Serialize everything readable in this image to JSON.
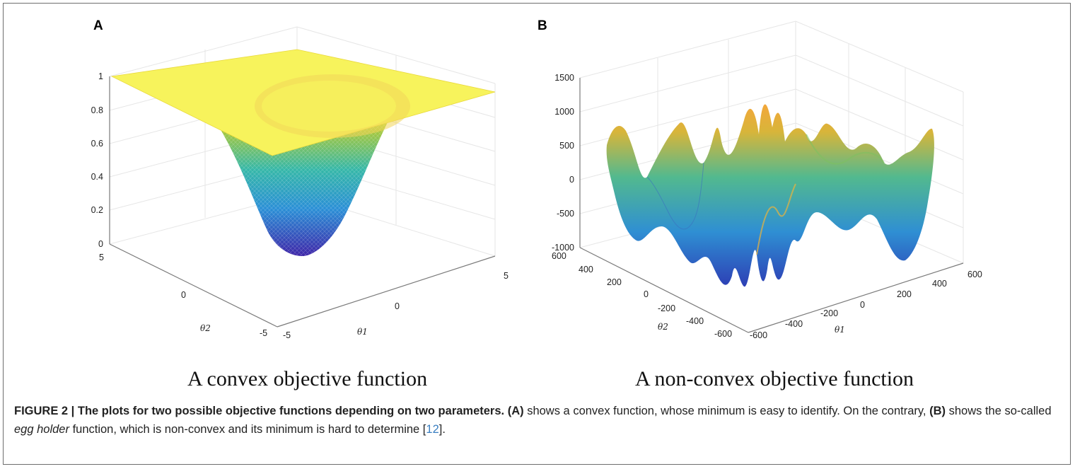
{
  "figure": {
    "panel_a": {
      "label": "A",
      "subtitle": "A convex objective function",
      "z_ticks": [
        "0",
        "0.2",
        "0.4",
        "0.6",
        "0.8",
        "1"
      ],
      "theta2_ticks": [
        "5",
        "0",
        "-5"
      ],
      "theta1_ticks": [
        "-5",
        "0",
        "5"
      ],
      "x_axis_label": "θ1",
      "y_axis_label": "θ2"
    },
    "panel_b": {
      "label": "B",
      "subtitle": "A non-convex objective function",
      "z_ticks": [
        "-1000",
        "-500",
        "0",
        "500",
        "1000",
        "1500"
      ],
      "theta2_ticks": [
        "600",
        "400",
        "200",
        "0",
        "-200",
        "-400",
        "-600"
      ],
      "theta1_ticks": [
        "-600",
        "-400",
        "-200",
        "0",
        "200",
        "400",
        "600"
      ],
      "x_axis_label": "θ1",
      "y_axis_label": "θ2"
    },
    "caption": {
      "figure_number": "FIGURE 2 | ",
      "title": "The plots for two possible objective functions depending on two parameters.",
      "ref_a": "(A)",
      "text_a": " shows a convex function, whose minimum is easy to identify. On the contrary, ",
      "ref_b": "(B)",
      "text_b_1": " shows the so-called ",
      "italic_term": "egg holder",
      "text_b_2": " function, which is non-convex and its minimum is hard to determine [",
      "citation": "12",
      "text_end": "]."
    }
  },
  "colors": {
    "surface_low": "#3e26a8",
    "surface_mid": "#35b7a8",
    "surface_high": "#f9fb15",
    "axis": "#7a7a7a",
    "grid": "#e6e6e6",
    "frame": "#6e6e6e",
    "citation": "#3a7fc1"
  }
}
